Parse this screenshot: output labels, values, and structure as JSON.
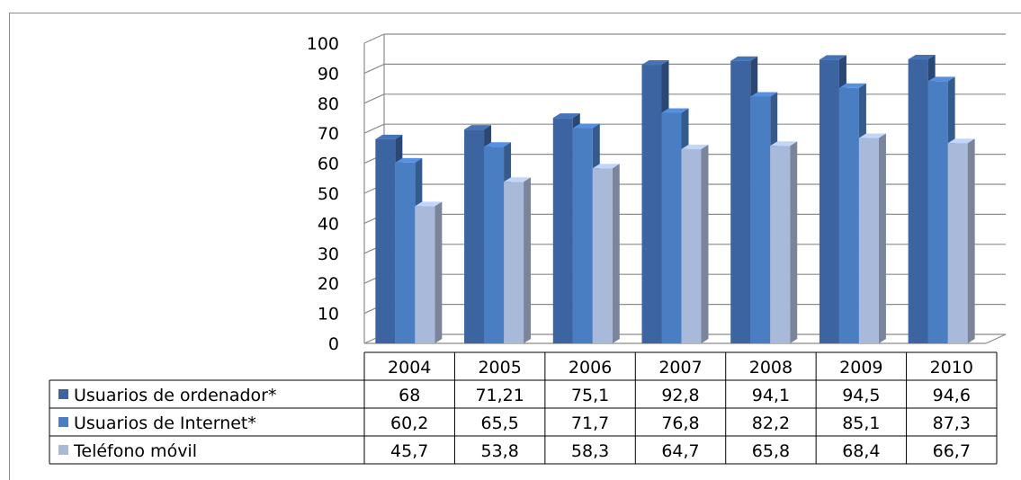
{
  "chart_data": {
    "type": "bar",
    "style": "3d-clustered-column-with-data-table",
    "categories": [
      "2004",
      "2005",
      "2006",
      "2007",
      "2008",
      "2009",
      "2010"
    ],
    "series": [
      {
        "name": "Usuarios de ordenador*",
        "color": "#3b64a0",
        "values": [
          68,
          71.21,
          75.1,
          92.8,
          94.1,
          94.5,
          94.6
        ],
        "labels": [
          "68",
          "71,21",
          "75,1",
          "92,8",
          "94,1",
          "94,5",
          "94,6"
        ]
      },
      {
        "name": "Usuarios de Internet*",
        "color": "#4a7ec3",
        "values": [
          60.2,
          65.5,
          71.7,
          76.8,
          82.2,
          85.1,
          87.3
        ],
        "labels": [
          "60,2",
          "65,5",
          "71,7",
          "76,8",
          "82,2",
          "85,1",
          "87,3"
        ]
      },
      {
        "name": "Teléfono móvil",
        "color": "#a9b9d9",
        "values": [
          45.7,
          53.8,
          58.3,
          64.7,
          65.8,
          68.4,
          66.7
        ],
        "labels": [
          "45,7",
          "53,8",
          "58,3",
          "64,7",
          "65,8",
          "68,4",
          "66,7"
        ]
      }
    ],
    "ylim": [
      0,
      100
    ],
    "yticks": [
      0,
      10,
      20,
      30,
      40,
      50,
      60,
      70,
      80,
      90,
      100
    ],
    "grid": true,
    "legend": "data-table-left"
  }
}
